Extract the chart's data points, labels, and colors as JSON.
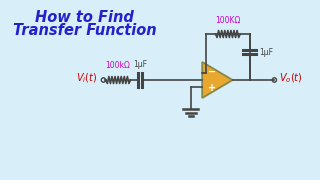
{
  "title_line1": "How to Find",
  "title_line2": "Transfer Function",
  "title_color": "#2222cc",
  "bg_color": "#d8eef8",
  "label_100k": "100kΩ",
  "label_1uF_input": "1μF",
  "label_100K_fb": "100KΩ",
  "label_1uF_fb": "1μF",
  "wire_color": "#444444",
  "resistor_label_color": "#cc00cc",
  "vi_color": "#cc0000",
  "vo_color": "#cc0000",
  "opamp_fill": "#e8a830",
  "opamp_edge": "#888844",
  "feedback_res_color": "#cc00cc",
  "feedback_cap_color": "#444444",
  "cap_label_color": "#444444",
  "gnd_color": "#444444"
}
